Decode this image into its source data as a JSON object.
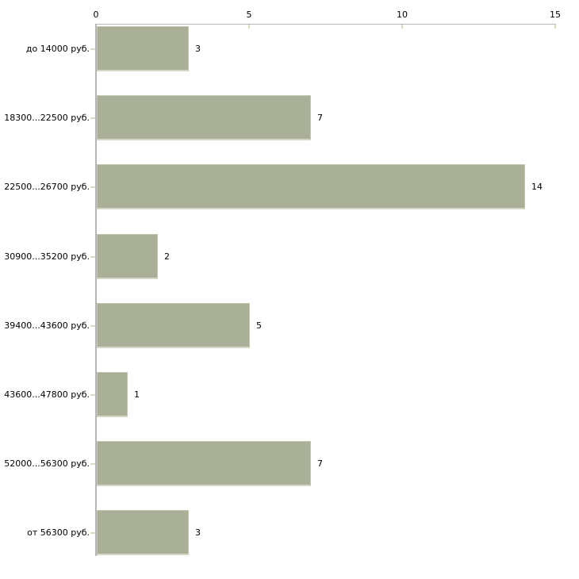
{
  "chart_data": {
    "type": "bar",
    "orientation": "horizontal",
    "title": "",
    "xlabel": "",
    "ylabel": "",
    "categories": [
      "до 14000 руб.",
      "18300...22500 руб.",
      "22500...26700 руб.",
      "30900...35200 руб.",
      "39400...43600 руб.",
      "43600...47800 руб.",
      "52000...56300 руб.",
      "от 56300 руб."
    ],
    "values": [
      3,
      7,
      14,
      2,
      5,
      1,
      7,
      3
    ],
    "value_labels": [
      "3",
      "7",
      "14",
      "2",
      "5",
      "1",
      "7",
      "3"
    ],
    "xlim": [
      0,
      15
    ],
    "x_ticks": [
      0,
      5,
      10,
      15
    ],
    "x_tick_labels": [
      "0",
      "5",
      "10",
      "15"
    ],
    "axis_position": "top",
    "grid": false,
    "legend_position": "none",
    "colors": {
      "bar_fill": "#aab098",
      "bar_border": "#c4c9b4",
      "axis_line": "#b6b6b6",
      "tick_mark": "#d9dcc1",
      "text": "#000000",
      "background": "#ffffff"
    }
  }
}
